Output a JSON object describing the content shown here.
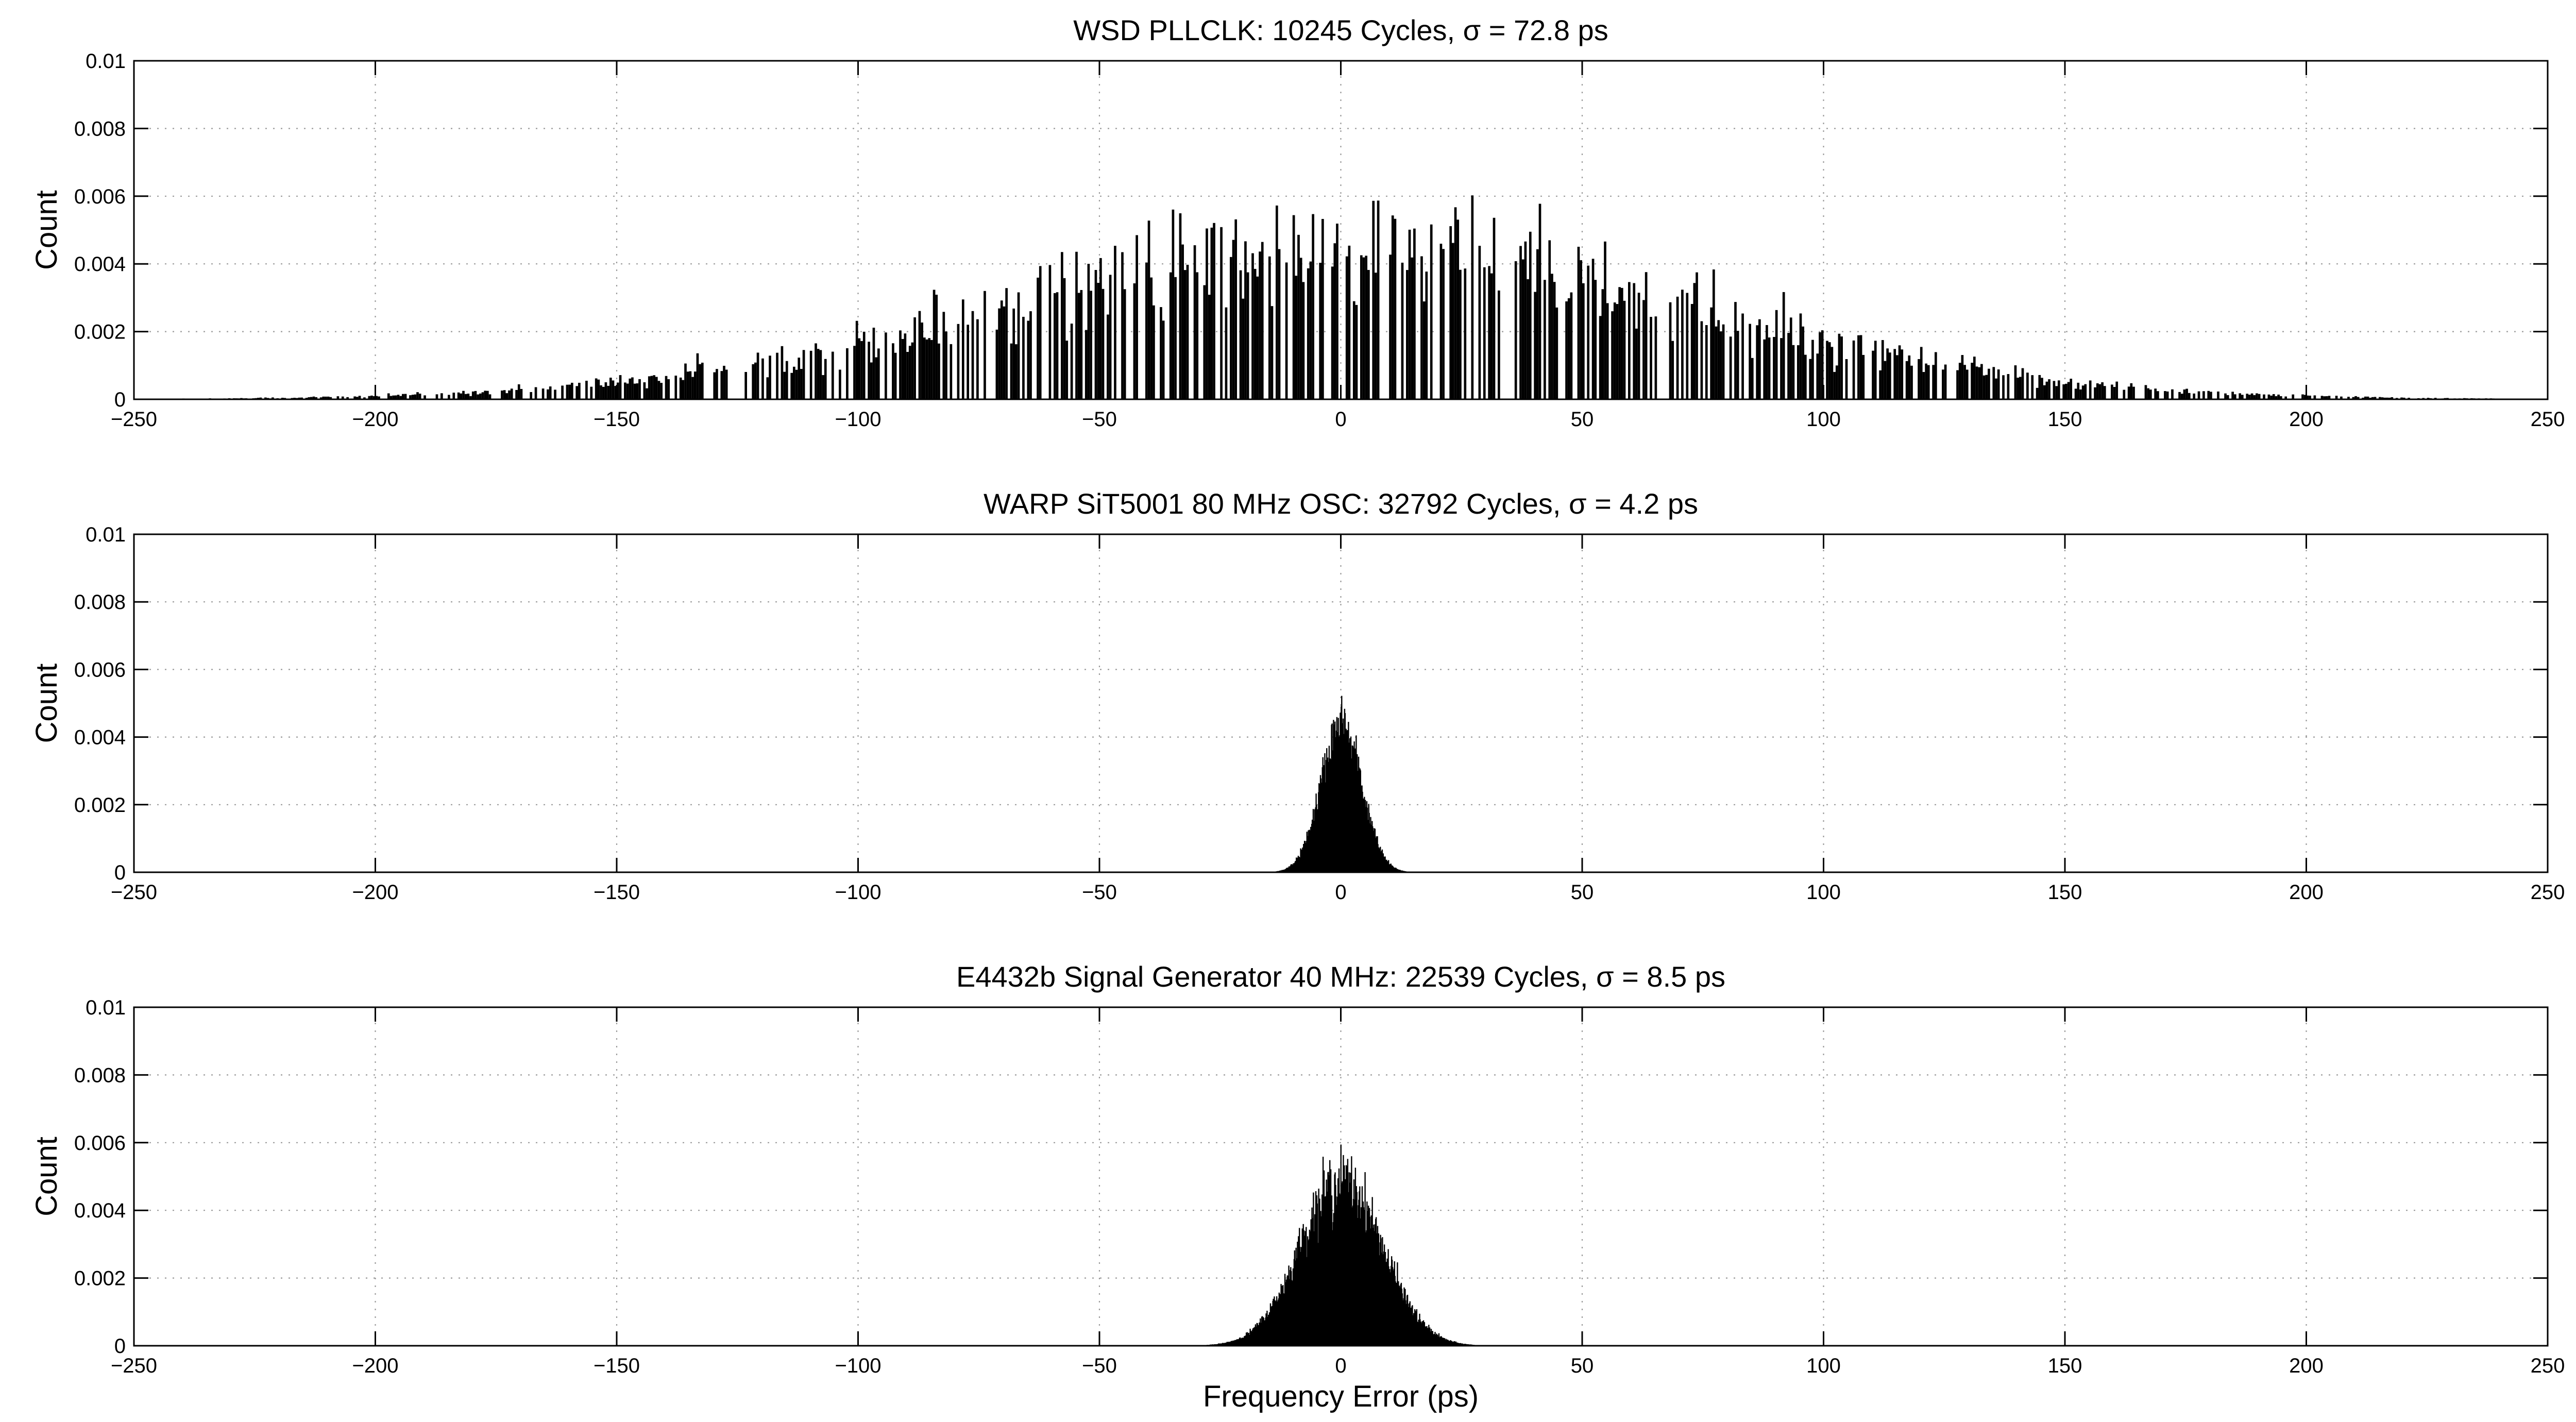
{
  "chart_data": [
    {
      "type": "bar",
      "title": "WSD PLLCLK: 10245 Cycles, σ = 72.8 ps",
      "xlabel": "",
      "ylabel": "Count",
      "xlim": [
        -250,
        250
      ],
      "ylim": [
        0,
        0.01
      ],
      "xticks": [
        -250,
        -200,
        -150,
        -100,
        -50,
        0,
        50,
        100,
        150,
        200,
        250
      ],
      "xtick_labels": [
        "−250",
        "−200",
        "−150",
        "−100",
        "−50",
        "0",
        "50",
        "100",
        "150",
        "200",
        "250"
      ],
      "yticks": [
        0,
        0.002,
        0.004,
        0.006,
        0.008,
        0.01
      ],
      "ytick_labels": [
        "0",
        "0.002",
        "0.004",
        "0.006",
        "0.008",
        "0.01"
      ],
      "grid": true,
      "distribution": {
        "shape": "gaussian",
        "mean": 0,
        "sigma": 72.8,
        "bin_width": 0.5,
        "peak": 0.0044
      }
    },
    {
      "type": "bar",
      "title": "WARP SiT5001 80 MHz OSC: 32792 Cycles, σ = 4.2 ps",
      "xlabel": "",
      "ylabel": "Count",
      "xlim": [
        -250,
        250
      ],
      "ylim": [
        0,
        0.01
      ],
      "xticks": [
        -250,
        -200,
        -150,
        -100,
        -50,
        0,
        50,
        100,
        150,
        200,
        250
      ],
      "xtick_labels": [
        "−250",
        "−200",
        "−150",
        "−100",
        "−50",
        "0",
        "50",
        "100",
        "150",
        "200",
        "250"
      ],
      "yticks": [
        0,
        0.002,
        0.004,
        0.006,
        0.008,
        0.01
      ],
      "ytick_labels": [
        "0",
        "0.002",
        "0.004",
        "0.006",
        "0.008",
        "0.01"
      ],
      "grid": true,
      "distribution": {
        "shape": "gaussian",
        "mean": 0,
        "sigma": 4.2,
        "bin_width": 0.1,
        "peak": 0.0042
      }
    },
    {
      "type": "bar",
      "title": "E4432b Signal Generator 40 MHz: 22539 Cycles, σ = 8.5 ps",
      "xlabel": "Frequency Error (ps)",
      "ylabel": "Count",
      "xlim": [
        -250,
        250
      ],
      "ylim": [
        0,
        0.01
      ],
      "xticks": [
        -250,
        -200,
        -150,
        -100,
        -50,
        0,
        50,
        100,
        150,
        200,
        250
      ],
      "xtick_labels": [
        "−250",
        "−200",
        "−150",
        "−100",
        "−50",
        "0",
        "50",
        "100",
        "150",
        "200",
        "250"
      ],
      "yticks": [
        0,
        0.002,
        0.004,
        0.006,
        0.008,
        0.01
      ],
      "ytick_labels": [
        "0",
        "0.002",
        "0.004",
        "0.006",
        "0.008",
        "0.01"
      ],
      "grid": true,
      "distribution": {
        "shape": "gaussian",
        "mean": 0,
        "sigma": 8.5,
        "bin_width": 0.1,
        "peak": 0.0047
      }
    }
  ]
}
